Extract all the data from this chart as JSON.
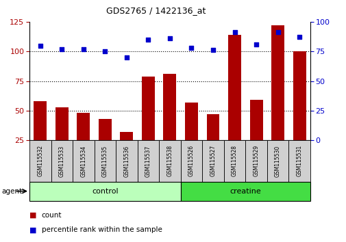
{
  "title": "GDS2765 / 1422136_at",
  "samples": [
    "GSM115532",
    "GSM115533",
    "GSM115534",
    "GSM115535",
    "GSM115536",
    "GSM115537",
    "GSM115538",
    "GSM115526",
    "GSM115527",
    "GSM115528",
    "GSM115529",
    "GSM115530",
    "GSM115531"
  ],
  "counts": [
    58,
    53,
    48,
    43,
    32,
    79,
    81,
    57,
    47,
    114,
    59,
    122,
    100
  ],
  "percentiles": [
    80,
    77,
    77,
    75,
    70,
    85,
    86,
    78,
    76,
    91,
    81,
    91,
    87
  ],
  "groups": [
    {
      "label": "control",
      "start": 0,
      "end": 7,
      "color": "#bbffbb"
    },
    {
      "label": "creatine",
      "start": 7,
      "end": 13,
      "color": "#44dd44"
    }
  ],
  "bar_color": "#aa0000",
  "dot_color": "#0000cc",
  "ylim_left": [
    25,
    125
  ],
  "ylim_right": [
    0,
    100
  ],
  "yticks_left": [
    25,
    50,
    75,
    100,
    125
  ],
  "yticks_right": [
    0,
    25,
    50,
    75,
    100
  ],
  "agent_label": "agent",
  "legend_count_label": "count",
  "legend_pct_label": "percentile rank within the sample"
}
